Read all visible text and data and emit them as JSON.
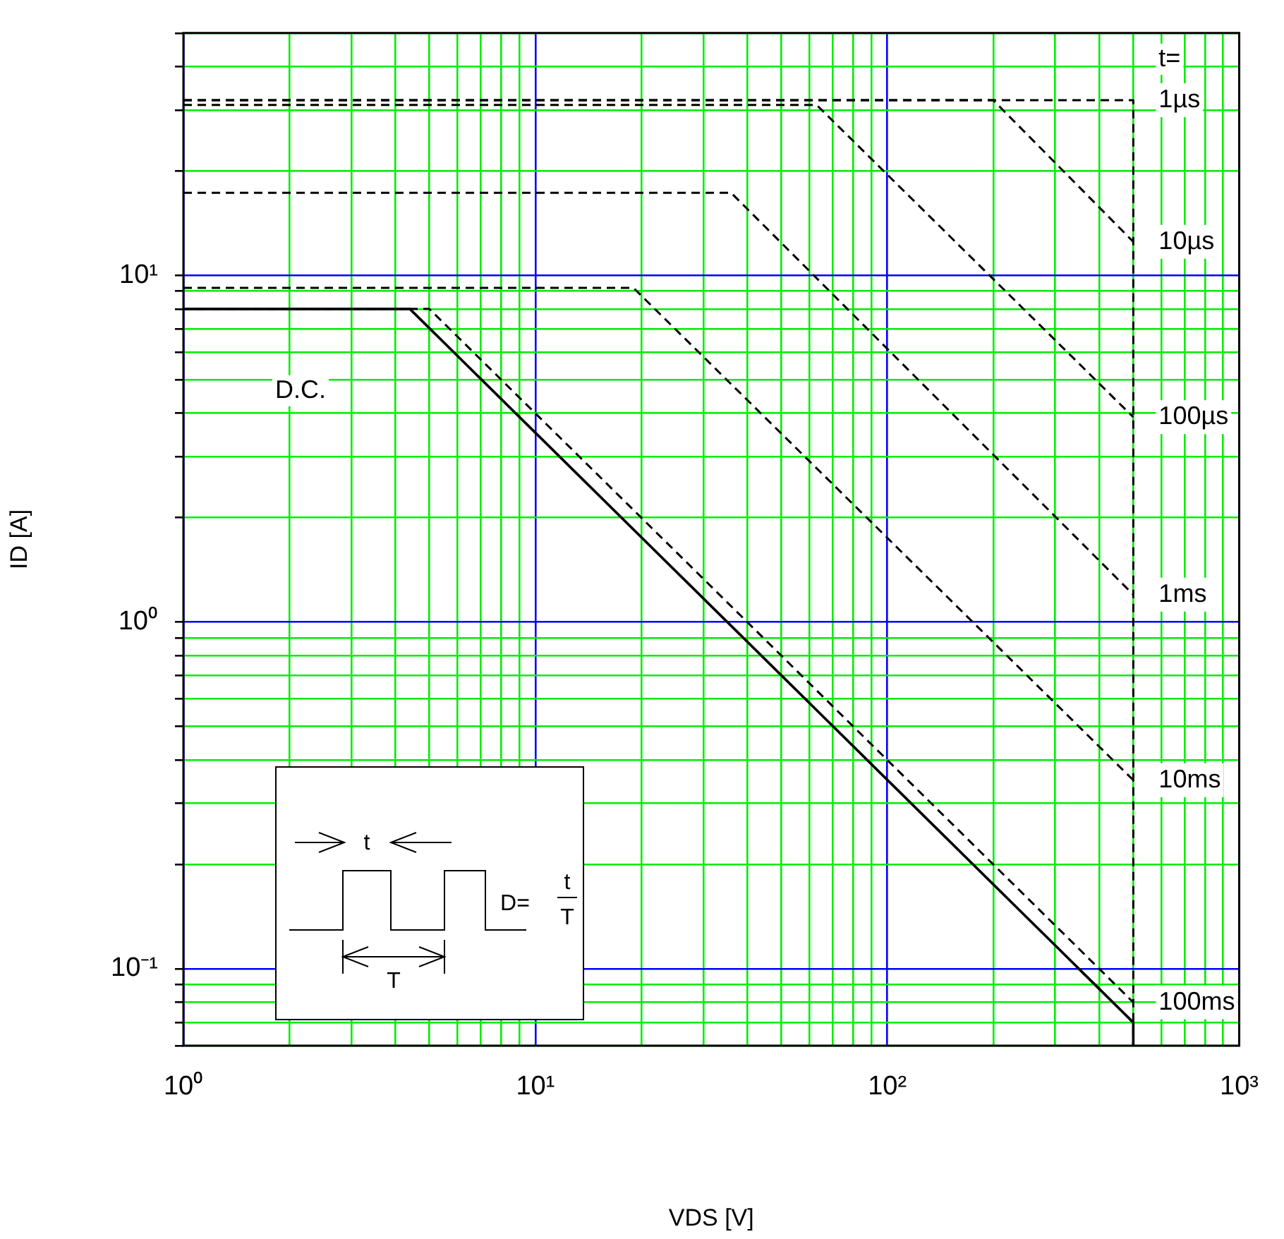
{
  "chart_data": {
    "type": "line",
    "xlabel": "VDS [V]",
    "ylabel": "ID [A]",
    "log": "xy",
    "grid": true,
    "legend": false,
    "marker": "none",
    "xlim": [
      1,
      1000
    ],
    "ylim": [
      0.06,
      50
    ],
    "xticks": [
      {
        "value": 1,
        "label": "10⁰"
      },
      {
        "value": 2,
        "label": null
      },
      {
        "value": 3,
        "label": null
      },
      {
        "value": 4,
        "label": null
      },
      {
        "value": 5,
        "label": null
      },
      {
        "value": 6,
        "label": null
      },
      {
        "value": 7,
        "label": null
      },
      {
        "value": 8,
        "label": null
      },
      {
        "value": 9,
        "label": null
      },
      {
        "value": 10,
        "label": "10¹"
      },
      {
        "value": 20,
        "label": null
      },
      {
        "value": 30,
        "label": null
      },
      {
        "value": 40,
        "label": null
      },
      {
        "value": 50,
        "label": null
      },
      {
        "value": 60,
        "label": null
      },
      {
        "value": 70,
        "label": null
      },
      {
        "value": 80,
        "label": null
      },
      {
        "value": 90,
        "label": null
      },
      {
        "value": 100,
        "label": "10²"
      },
      {
        "value": 200,
        "label": null
      },
      {
        "value": 300,
        "label": null
      },
      {
        "value": 400,
        "label": null
      },
      {
        "value": 500,
        "label": null
      },
      {
        "value": 600,
        "label": null
      },
      {
        "value": 700,
        "label": null
      },
      {
        "value": 800,
        "label": null
      },
      {
        "value": 900,
        "label": null
      },
      {
        "value": 1000,
        "label": "10³"
      }
    ],
    "yticks": [
      {
        "value": 0.06,
        "label": null
      },
      {
        "value": 0.07,
        "label": null
      },
      {
        "value": 0.08,
        "label": null
      },
      {
        "value": 0.09,
        "label": null
      },
      {
        "value": 0.1,
        "label": "10⁻¹"
      },
      {
        "value": 0.2,
        "label": null
      },
      {
        "value": 0.3,
        "label": null
      },
      {
        "value": 0.4,
        "label": null
      },
      {
        "value": 0.5,
        "label": null
      },
      {
        "value": 0.6,
        "label": null
      },
      {
        "value": 0.7,
        "label": null
      },
      {
        "value": 0.8,
        "label": null
      },
      {
        "value": 0.9,
        "label": null
      },
      {
        "value": 1,
        "label": "10⁰"
      },
      {
        "value": 2,
        "label": null
      },
      {
        "value": 3,
        "label": null
      },
      {
        "value": 4,
        "label": null
      },
      {
        "value": 5,
        "label": null
      },
      {
        "value": 6,
        "label": null
      },
      {
        "value": 7,
        "label": null
      },
      {
        "value": 8,
        "label": null
      },
      {
        "value": 9,
        "label": null
      },
      {
        "value": 10,
        "label": "10¹"
      },
      {
        "value": 20,
        "label": null
      },
      {
        "value": 30,
        "label": null
      },
      {
        "value": 40,
        "label": null
      },
      {
        "value": 50,
        "label": null
      }
    ],
    "annotations": [
      "t=",
      "t",
      "T",
      "D=",
      "t",
      "T"
    ],
    "series": [
      {
        "name": "1µs",
        "color": "#000000",
        "line_style": "dashed",
        "x": [
          1,
          500,
          500
        ],
        "values": [
          32,
          32,
          0.06
        ]
      },
      {
        "name": "10µs",
        "color": "#000000",
        "line_style": "dashed",
        "x": [
          1,
          200,
          500
        ],
        "values": [
          32,
          32,
          12.5
        ]
      },
      {
        "name": "100µs",
        "color": "#000000",
        "line_style": "dashed",
        "x": [
          1,
          63,
          500
        ],
        "values": [
          31,
          31,
          3.9
        ]
      },
      {
        "name": "1ms",
        "color": "#000000",
        "line_style": "dashed",
        "x": [
          1,
          36,
          500
        ],
        "values": [
          17.3,
          17.3,
          1.2
        ]
      },
      {
        "name": "10ms",
        "color": "#000000",
        "line_style": "dashed",
        "x": [
          1,
          19,
          500
        ],
        "values": [
          9.2,
          9.2,
          0.35
        ]
      },
      {
        "name": "100ms",
        "color": "#000000",
        "line_style": "dashed",
        "x": [
          1,
          5,
          500
        ],
        "values": [
          8,
          8,
          0.08
        ]
      },
      {
        "name": "D.C.",
        "color": "#000000",
        "line_style": "solid",
        "x": [
          1,
          4.4,
          500,
          500
        ],
        "values": [
          8,
          8,
          0.07,
          0.06
        ]
      }
    ]
  }
}
